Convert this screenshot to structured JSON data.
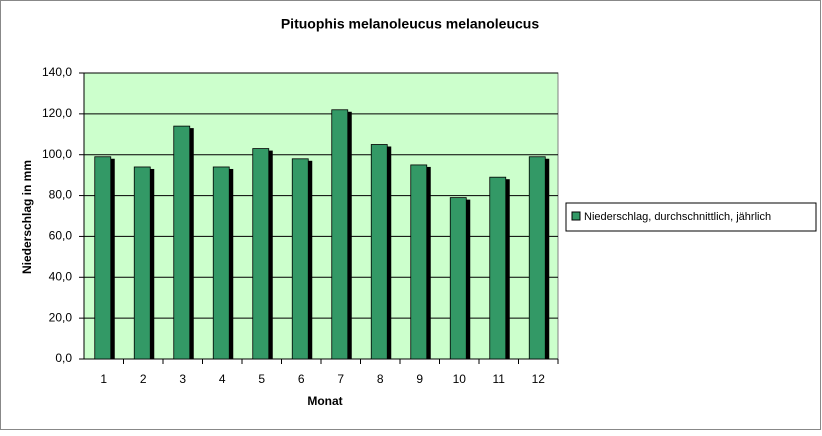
{
  "chart_data": {
    "type": "bar",
    "title": "Pituophis melanoleucus melanoleucus",
    "xlabel": "Monat",
    "ylabel": "Niederschlag in mm",
    "categories": [
      "1",
      "2",
      "3",
      "4",
      "5",
      "6",
      "7",
      "8",
      "9",
      "10",
      "11",
      "12"
    ],
    "series": [
      {
        "name": "Niederschlag, durchschnittlich, jährlich",
        "color": "#339966",
        "values": [
          99,
          94,
          114,
          94,
          103,
          98,
          122,
          105,
          95,
          79,
          89,
          99
        ]
      }
    ],
    "ylim": [
      0,
      140
    ],
    "yticks": [
      {
        "value": 0,
        "label": "0,0"
      },
      {
        "value": 20,
        "label": "20,0"
      },
      {
        "value": 40,
        "label": "40,0"
      },
      {
        "value": 60,
        "label": "60,0"
      },
      {
        "value": 80,
        "label": "80,0"
      },
      {
        "value": 100,
        "label": "100,0"
      },
      {
        "value": 120,
        "label": "120,0"
      },
      {
        "value": 140,
        "label": "140,0"
      }
    ],
    "grid": true,
    "legend": "right",
    "plot_background": "#ccffcc"
  }
}
